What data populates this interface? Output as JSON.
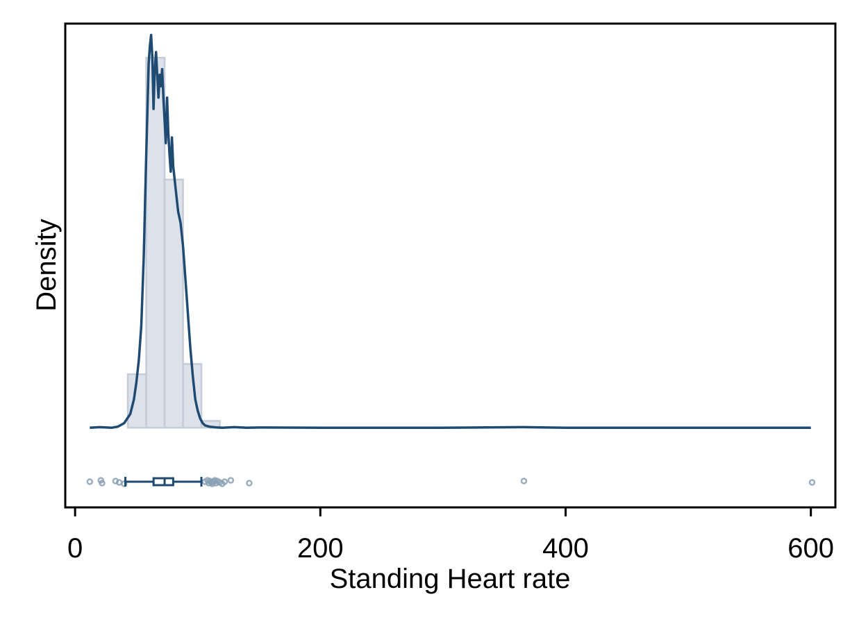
{
  "chart_data": {
    "type": "histogram",
    "xlabel": "Standing Heart rate",
    "ylabel": "Density",
    "xlim": [
      -8,
      620
    ],
    "ylim": [
      -0.007,
      0.0355
    ],
    "xticks": [
      0,
      200,
      400,
      600
    ],
    "xtick_labels": [
      "0",
      "200",
      "400",
      "600"
    ],
    "grid": false,
    "colors": {
      "bar_fill": "#dde2ea",
      "bar_stroke": "#c3ccd8",
      "line": "#1f4a72",
      "outlier": "#8aa0b4"
    },
    "histogram": {
      "bin_edges": [
        43,
        58,
        73,
        88,
        103,
        118
      ],
      "densities": [
        0.0047,
        0.0325,
        0.0218,
        0.0056,
        0.0006
      ]
    },
    "kde": {
      "x": [
        12,
        20,
        30,
        35,
        40,
        45,
        48,
        50,
        52,
        54,
        56,
        58,
        60,
        61,
        62,
        63,
        64,
        65,
        66,
        67,
        68,
        69,
        70,
        71,
        72,
        73,
        74,
        75,
        76,
        77,
        78,
        79,
        80,
        82,
        84,
        86,
        88,
        90,
        92,
        94,
        96,
        98,
        100,
        102,
        104,
        106,
        110,
        115,
        120,
        130,
        140,
        150,
        200,
        300,
        365,
        400,
        500,
        600
      ],
      "y": [
        0.0,
        5e-05,
        0.0,
        0.0001,
        0.0004,
        0.0012,
        0.0025,
        0.004,
        0.006,
        0.009,
        0.015,
        0.024,
        0.032,
        0.0335,
        0.0345,
        0.0325,
        0.028,
        0.0315,
        0.033,
        0.031,
        0.029,
        0.031,
        0.03,
        0.0315,
        0.029,
        0.027,
        0.025,
        0.029,
        0.026,
        0.024,
        0.0225,
        0.0255,
        0.023,
        0.021,
        0.019,
        0.018,
        0.016,
        0.013,
        0.01,
        0.007,
        0.0045,
        0.0025,
        0.0015,
        0.0008,
        0.0004,
        0.0002,
        8e-05,
        3e-05,
        0.0,
        5e-05,
        0.0,
        2e-05,
        0.0,
        0.0,
        5e-05,
        0.0,
        0.0,
        0.0
      ]
    },
    "boxplot": {
      "whisker_low": 41,
      "q1": 64,
      "median": 73,
      "q3": 80,
      "whisker_high": 103,
      "outliers": [
        12,
        21,
        22,
        33,
        36,
        40,
        106,
        108,
        109,
        110,
        111,
        112,
        113,
        114,
        115,
        116,
        118,
        120,
        122,
        127,
        142,
        366,
        601
      ]
    }
  }
}
